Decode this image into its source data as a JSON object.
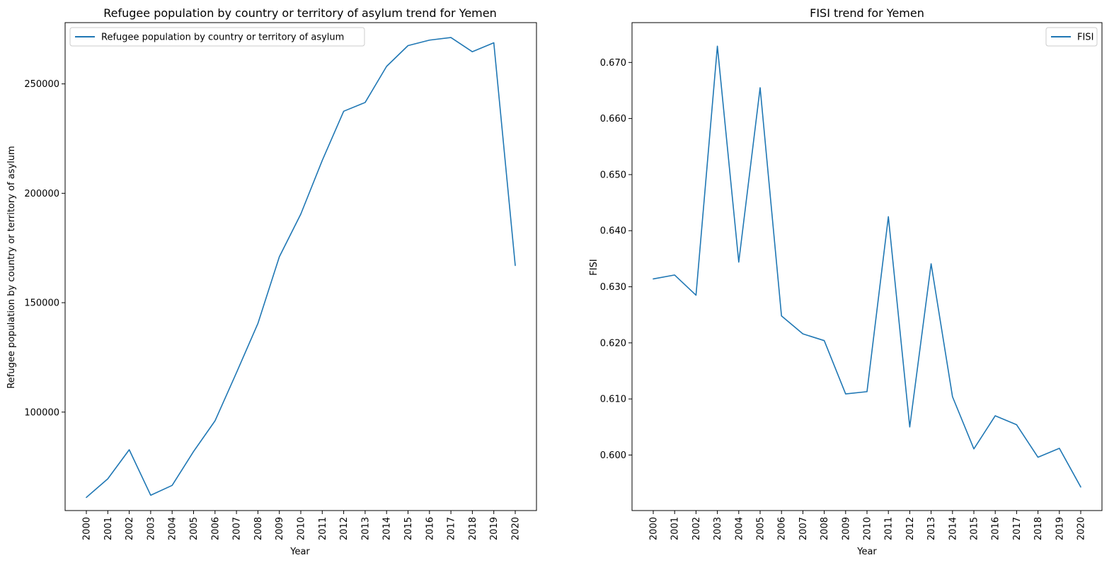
{
  "chart_data": [
    {
      "type": "line",
      "title": "Refugee population by country or territory of asylum trend for Yemen",
      "xlabel": "Year",
      "ylabel": "Refugee population by country or territory of asylum",
      "x": [
        "2000",
        "2001",
        "2002",
        "2003",
        "2004",
        "2005",
        "2006",
        "2007",
        "2008",
        "2009",
        "2010",
        "2011",
        "2012",
        "2013",
        "2014",
        "2015",
        "2016",
        "2017",
        "2018",
        "2019",
        "2020"
      ],
      "series": [
        {
          "name": "Refugee population by country or territory of asylum",
          "color": "#1f77b4",
          "values": [
            61000,
            69500,
            82800,
            62000,
            66500,
            82000,
            96000,
            118000,
            140500,
            171000,
            190500,
            215000,
            237500,
            241500,
            258000,
            267500,
            270000,
            271200,
            264700,
            268800,
            167000
          ]
        }
      ],
      "ylim": [
        55000,
        278000
      ],
      "yticks": [
        100000,
        150000,
        200000,
        250000
      ],
      "yticklabels": [
        "100000",
        "150000",
        "200000",
        "250000"
      ],
      "legend_position": "top-left"
    },
    {
      "type": "line",
      "title": "FISI trend for Yemen",
      "xlabel": "Year",
      "ylabel": "FISI",
      "x": [
        "2000",
        "2001",
        "2002",
        "2003",
        "2004",
        "2005",
        "2006",
        "2007",
        "2008",
        "2009",
        "2010",
        "2011",
        "2012",
        "2013",
        "2014",
        "2015",
        "2016",
        "2017",
        "2018",
        "2019",
        "2020"
      ],
      "series": [
        {
          "name": "FISI",
          "color": "#1f77b4",
          "values": [
            0.6314,
            0.6321,
            0.6285,
            0.6729,
            0.6344,
            0.6655,
            0.6248,
            0.6216,
            0.6204,
            0.6109,
            0.6113,
            0.6425,
            0.605,
            0.6341,
            0.6104,
            0.6011,
            0.607,
            0.6054,
            0.5996,
            0.6012,
            0.5943
          ]
        }
      ],
      "ylim": [
        0.5901,
        0.6771
      ],
      "yticks": [
        0.6,
        0.61,
        0.62,
        0.63,
        0.64,
        0.65,
        0.66,
        0.67
      ],
      "yticklabels": [
        "0.600",
        "0.610",
        "0.620",
        "0.630",
        "0.640",
        "0.650",
        "0.660",
        "0.670"
      ],
      "legend_position": "top-right"
    }
  ]
}
